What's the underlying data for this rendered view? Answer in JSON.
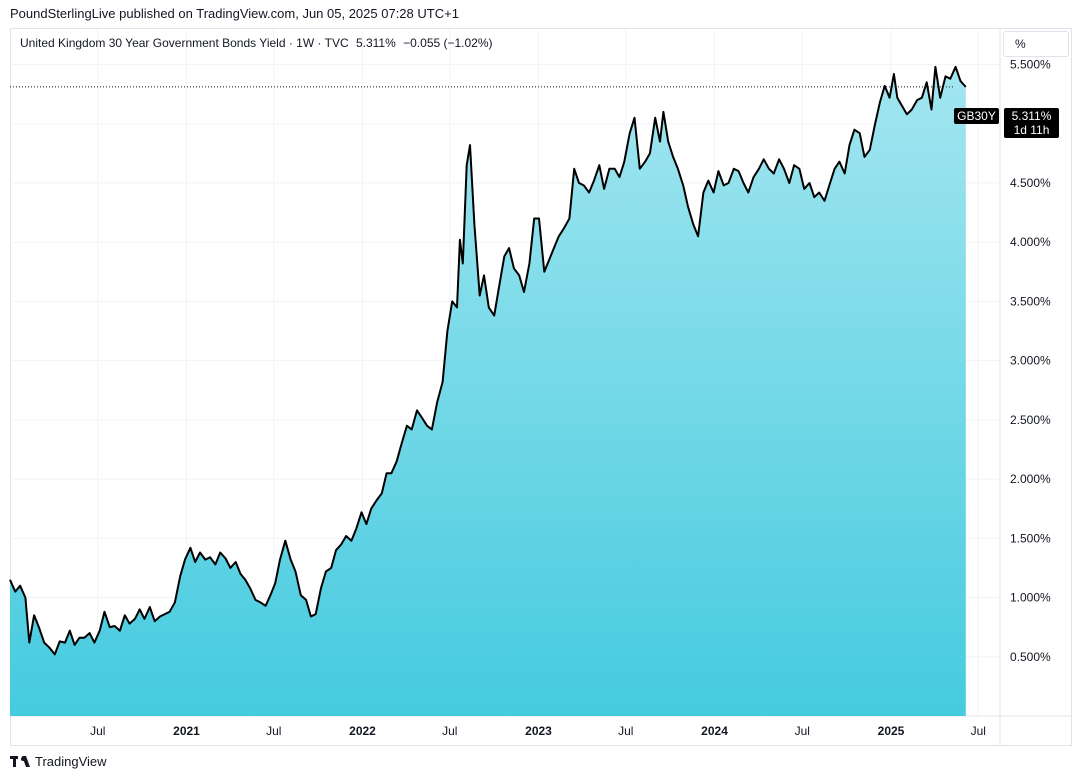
{
  "header": {
    "publisher": "PoundSterlingLive published on TradingView.com, Jun 05, 2025 07:28 UTC+1"
  },
  "legend": {
    "title": "United Kingdom 30 Year Government Bonds Yield · 1W · TVC",
    "last_value": "5.311%",
    "change": "−0.055 (−1.02%)"
  },
  "unit_selector": "%",
  "price_tag": {
    "symbol": "GB30Y",
    "value": "5.311%",
    "countdown": "1d 11h"
  },
  "footer": {
    "brand": "TradingView"
  },
  "colors": {
    "line": "#000000",
    "area_top": "#a3e6f0",
    "area_bottom": "#45cbdf",
    "grid": "#f0f3fa",
    "tag_bg": "#000000"
  },
  "chart_data": {
    "type": "area",
    "title": "United Kingdom 30 Year Government Bonds Yield",
    "interval": "1W",
    "y_unit": "%",
    "ylim": [
      0.0,
      5.8
    ],
    "y_ticks": [
      "0.500%",
      "1.000%",
      "1.500%",
      "2.000%",
      "2.500%",
      "3.000%",
      "3.500%",
      "4.000%",
      "4.500%",
      "5.000%",
      "5.500%"
    ],
    "y_tick_values": [
      0.5,
      1.0,
      1.5,
      2.0,
      2.5,
      3.0,
      3.5,
      4.0,
      4.5,
      5.0,
      5.5
    ],
    "x_range": [
      "2020-01-01",
      "2025-08-15"
    ],
    "x_ticks": [
      {
        "label": "Jul",
        "date": "2020-07-01",
        "year": false
      },
      {
        "label": "2021",
        "date": "2021-01-01",
        "year": true
      },
      {
        "label": "Jul",
        "date": "2021-07-01",
        "year": false
      },
      {
        "label": "2022",
        "date": "2022-01-01",
        "year": true
      },
      {
        "label": "Jul",
        "date": "2022-07-01",
        "year": false
      },
      {
        "label": "2023",
        "date": "2023-01-01",
        "year": true
      },
      {
        "label": "Jul",
        "date": "2023-07-01",
        "year": false
      },
      {
        "label": "2024",
        "date": "2024-01-01",
        "year": true
      },
      {
        "label": "Jul",
        "date": "2024-07-01",
        "year": false
      },
      {
        "label": "2025",
        "date": "2025-01-01",
        "year": true
      },
      {
        "label": "Jul",
        "date": "2025-07-01",
        "year": false
      }
    ],
    "last_value": 5.311,
    "points": [
      [
        "2020-01-01",
        1.15
      ],
      [
        "2020-01-12",
        1.05
      ],
      [
        "2020-01-22",
        1.1
      ],
      [
        "2020-02-02",
        1.0
      ],
      [
        "2020-02-10",
        0.62
      ],
      [
        "2020-02-20",
        0.85
      ],
      [
        "2020-03-01",
        0.75
      ],
      [
        "2020-03-12",
        0.62
      ],
      [
        "2020-03-22",
        0.58
      ],
      [
        "2020-04-03",
        0.52
      ],
      [
        "2020-04-13",
        0.63
      ],
      [
        "2020-04-24",
        0.62
      ],
      [
        "2020-05-04",
        0.72
      ],
      [
        "2020-05-14",
        0.6
      ],
      [
        "2020-05-24",
        0.66
      ],
      [
        "2020-06-03",
        0.66
      ],
      [
        "2020-06-14",
        0.7
      ],
      [
        "2020-06-24",
        0.62
      ],
      [
        "2020-07-05",
        0.72
      ],
      [
        "2020-07-15",
        0.88
      ],
      [
        "2020-07-26",
        0.75
      ],
      [
        "2020-08-05",
        0.76
      ],
      [
        "2020-08-16",
        0.72
      ],
      [
        "2020-08-26",
        0.85
      ],
      [
        "2020-09-05",
        0.78
      ],
      [
        "2020-09-16",
        0.82
      ],
      [
        "2020-09-26",
        0.9
      ],
      [
        "2020-10-06",
        0.82
      ],
      [
        "2020-10-17",
        0.92
      ],
      [
        "2020-10-27",
        0.8
      ],
      [
        "2020-11-07",
        0.84
      ],
      [
        "2020-11-17",
        0.86
      ],
      [
        "2020-11-27",
        0.88
      ],
      [
        "2020-12-08",
        0.96
      ],
      [
        "2020-12-19",
        1.18
      ],
      [
        "2020-12-29",
        1.32
      ],
      [
        "2021-01-09",
        1.42
      ],
      [
        "2021-01-19",
        1.3
      ],
      [
        "2021-01-29",
        1.38
      ],
      [
        "2021-02-09",
        1.32
      ],
      [
        "2021-02-19",
        1.34
      ],
      [
        "2021-03-02",
        1.28
      ],
      [
        "2021-03-12",
        1.38
      ],
      [
        "2021-03-23",
        1.33
      ],
      [
        "2021-04-02",
        1.25
      ],
      [
        "2021-04-13",
        1.3
      ],
      [
        "2021-04-23",
        1.2
      ],
      [
        "2021-05-03",
        1.15
      ],
      [
        "2021-05-13",
        1.08
      ],
      [
        "2021-05-24",
        0.98
      ],
      [
        "2021-06-03",
        0.96
      ],
      [
        "2021-06-14",
        0.93
      ],
      [
        "2021-06-24",
        1.02
      ],
      [
        "2021-07-04",
        1.12
      ],
      [
        "2021-07-14",
        1.32
      ],
      [
        "2021-07-25",
        1.48
      ],
      [
        "2021-08-05",
        1.32
      ],
      [
        "2021-08-15",
        1.22
      ],
      [
        "2021-08-26",
        1.02
      ],
      [
        "2021-09-06",
        0.98
      ],
      [
        "2021-09-16",
        0.84
      ],
      [
        "2021-09-26",
        0.86
      ],
      [
        "2021-10-07",
        1.08
      ],
      [
        "2021-10-17",
        1.22
      ],
      [
        "2021-10-28",
        1.25
      ],
      [
        "2021-11-07",
        1.4
      ],
      [
        "2021-11-18",
        1.45
      ],
      [
        "2021-11-28",
        1.52
      ],
      [
        "2021-12-09",
        1.48
      ],
      [
        "2021-12-19",
        1.58
      ],
      [
        "2021-12-30",
        1.72
      ],
      [
        "2022-01-09",
        1.62
      ],
      [
        "2022-01-19",
        1.75
      ],
      [
        "2022-01-30",
        1.82
      ],
      [
        "2022-02-10",
        1.88
      ],
      [
        "2022-02-20",
        2.05
      ],
      [
        "2022-03-02",
        2.05
      ],
      [
        "2022-03-13",
        2.15
      ],
      [
        "2022-03-23",
        2.3
      ],
      [
        "2022-04-03",
        2.45
      ],
      [
        "2022-04-13",
        2.42
      ],
      [
        "2022-04-24",
        2.58
      ],
      [
        "2022-05-04",
        2.52
      ],
      [
        "2022-05-15",
        2.45
      ],
      [
        "2022-05-25",
        2.42
      ],
      [
        "2022-06-05",
        2.65
      ],
      [
        "2022-06-16",
        2.82
      ],
      [
        "2022-06-26",
        3.25
      ],
      [
        "2022-07-06",
        3.5
      ],
      [
        "2022-07-16",
        3.45
      ],
      [
        "2022-07-22",
        4.02
      ],
      [
        "2022-07-28",
        3.82
      ],
      [
        "2022-08-05",
        4.65
      ],
      [
        "2022-08-12",
        4.82
      ],
      [
        "2022-08-21",
        4.15
      ],
      [
        "2022-09-01",
        3.55
      ],
      [
        "2022-09-10",
        3.72
      ],
      [
        "2022-09-20",
        3.45
      ],
      [
        "2022-10-01",
        3.38
      ],
      [
        "2022-10-11",
        3.62
      ],
      [
        "2022-10-22",
        3.88
      ],
      [
        "2022-11-01",
        3.95
      ],
      [
        "2022-11-11",
        3.78
      ],
      [
        "2022-11-22",
        3.72
      ],
      [
        "2022-12-02",
        3.58
      ],
      [
        "2022-12-13",
        3.82
      ],
      [
        "2022-12-23",
        4.2
      ],
      [
        "2023-01-02",
        4.2
      ],
      [
        "2023-01-13",
        3.75
      ],
      [
        "2023-01-23",
        3.85
      ],
      [
        "2023-02-02",
        3.95
      ],
      [
        "2023-02-12",
        4.05
      ],
      [
        "2023-02-23",
        4.12
      ],
      [
        "2023-03-06",
        4.2
      ],
      [
        "2023-03-16",
        4.62
      ],
      [
        "2023-03-26",
        4.5
      ],
      [
        "2023-04-05",
        4.48
      ],
      [
        "2023-04-16",
        4.42
      ],
      [
        "2023-04-26",
        4.52
      ],
      [
        "2023-05-07",
        4.65
      ],
      [
        "2023-05-17",
        4.45
      ],
      [
        "2023-05-28",
        4.62
      ],
      [
        "2023-06-08",
        4.62
      ],
      [
        "2023-06-18",
        4.55
      ],
      [
        "2023-06-28",
        4.68
      ],
      [
        "2023-07-09",
        4.92
      ],
      [
        "2023-07-19",
        5.05
      ],
      [
        "2023-07-30",
        4.62
      ],
      [
        "2023-08-10",
        4.68
      ],
      [
        "2023-08-20",
        4.75
      ],
      [
        "2023-08-31",
        5.05
      ],
      [
        "2023-09-10",
        4.85
      ],
      [
        "2023-09-17",
        5.1
      ],
      [
        "2023-09-27",
        4.85
      ],
      [
        "2023-10-07",
        4.72
      ],
      [
        "2023-10-17",
        4.62
      ],
      [
        "2023-10-28",
        4.48
      ],
      [
        "2023-11-07",
        4.3
      ],
      [
        "2023-11-18",
        4.15
      ],
      [
        "2023-11-28",
        4.05
      ],
      [
        "2023-12-09",
        4.42
      ],
      [
        "2023-12-19",
        4.52
      ],
      [
        "2023-12-30",
        4.42
      ],
      [
        "2024-01-09",
        4.6
      ],
      [
        "2024-01-20",
        4.48
      ],
      [
        "2024-01-30",
        4.5
      ],
      [
        "2024-02-10",
        4.62
      ],
      [
        "2024-02-20",
        4.6
      ],
      [
        "2024-03-01",
        4.5
      ],
      [
        "2024-03-11",
        4.42
      ],
      [
        "2024-03-22",
        4.55
      ],
      [
        "2024-04-02",
        4.62
      ],
      [
        "2024-04-12",
        4.7
      ],
      [
        "2024-04-23",
        4.62
      ],
      [
        "2024-05-03",
        4.58
      ],
      [
        "2024-05-14",
        4.7
      ],
      [
        "2024-05-24",
        4.62
      ],
      [
        "2024-06-04",
        4.5
      ],
      [
        "2024-06-14",
        4.65
      ],
      [
        "2024-06-25",
        4.62
      ],
      [
        "2024-07-05",
        4.45
      ],
      [
        "2024-07-16",
        4.5
      ],
      [
        "2024-07-26",
        4.38
      ],
      [
        "2024-08-05",
        4.42
      ],
      [
        "2024-08-16",
        4.35
      ],
      [
        "2024-08-26",
        4.48
      ],
      [
        "2024-09-06",
        4.62
      ],
      [
        "2024-09-16",
        4.68
      ],
      [
        "2024-09-27",
        4.58
      ],
      [
        "2024-10-07",
        4.82
      ],
      [
        "2024-10-17",
        4.95
      ],
      [
        "2024-10-28",
        4.92
      ],
      [
        "2024-11-07",
        4.72
      ],
      [
        "2024-11-18",
        4.78
      ],
      [
        "2024-11-28",
        4.98
      ],
      [
        "2024-12-09",
        5.18
      ],
      [
        "2024-12-19",
        5.32
      ],
      [
        "2024-12-29",
        5.22
      ],
      [
        "2025-01-07",
        5.42
      ],
      [
        "2025-01-14",
        5.22
      ],
      [
        "2025-01-24",
        5.15
      ],
      [
        "2025-02-03",
        5.08
      ],
      [
        "2025-02-13",
        5.12
      ],
      [
        "2025-02-24",
        5.2
      ],
      [
        "2025-03-06",
        5.22
      ],
      [
        "2025-03-16",
        5.35
      ],
      [
        "2025-03-26",
        5.12
      ],
      [
        "2025-04-03",
        5.48
      ],
      [
        "2025-04-13",
        5.22
      ],
      [
        "2025-04-24",
        5.4
      ],
      [
        "2025-05-04",
        5.38
      ],
      [
        "2025-05-15",
        5.48
      ],
      [
        "2025-05-25",
        5.36
      ],
      [
        "2025-06-05",
        5.311
      ]
    ]
  }
}
